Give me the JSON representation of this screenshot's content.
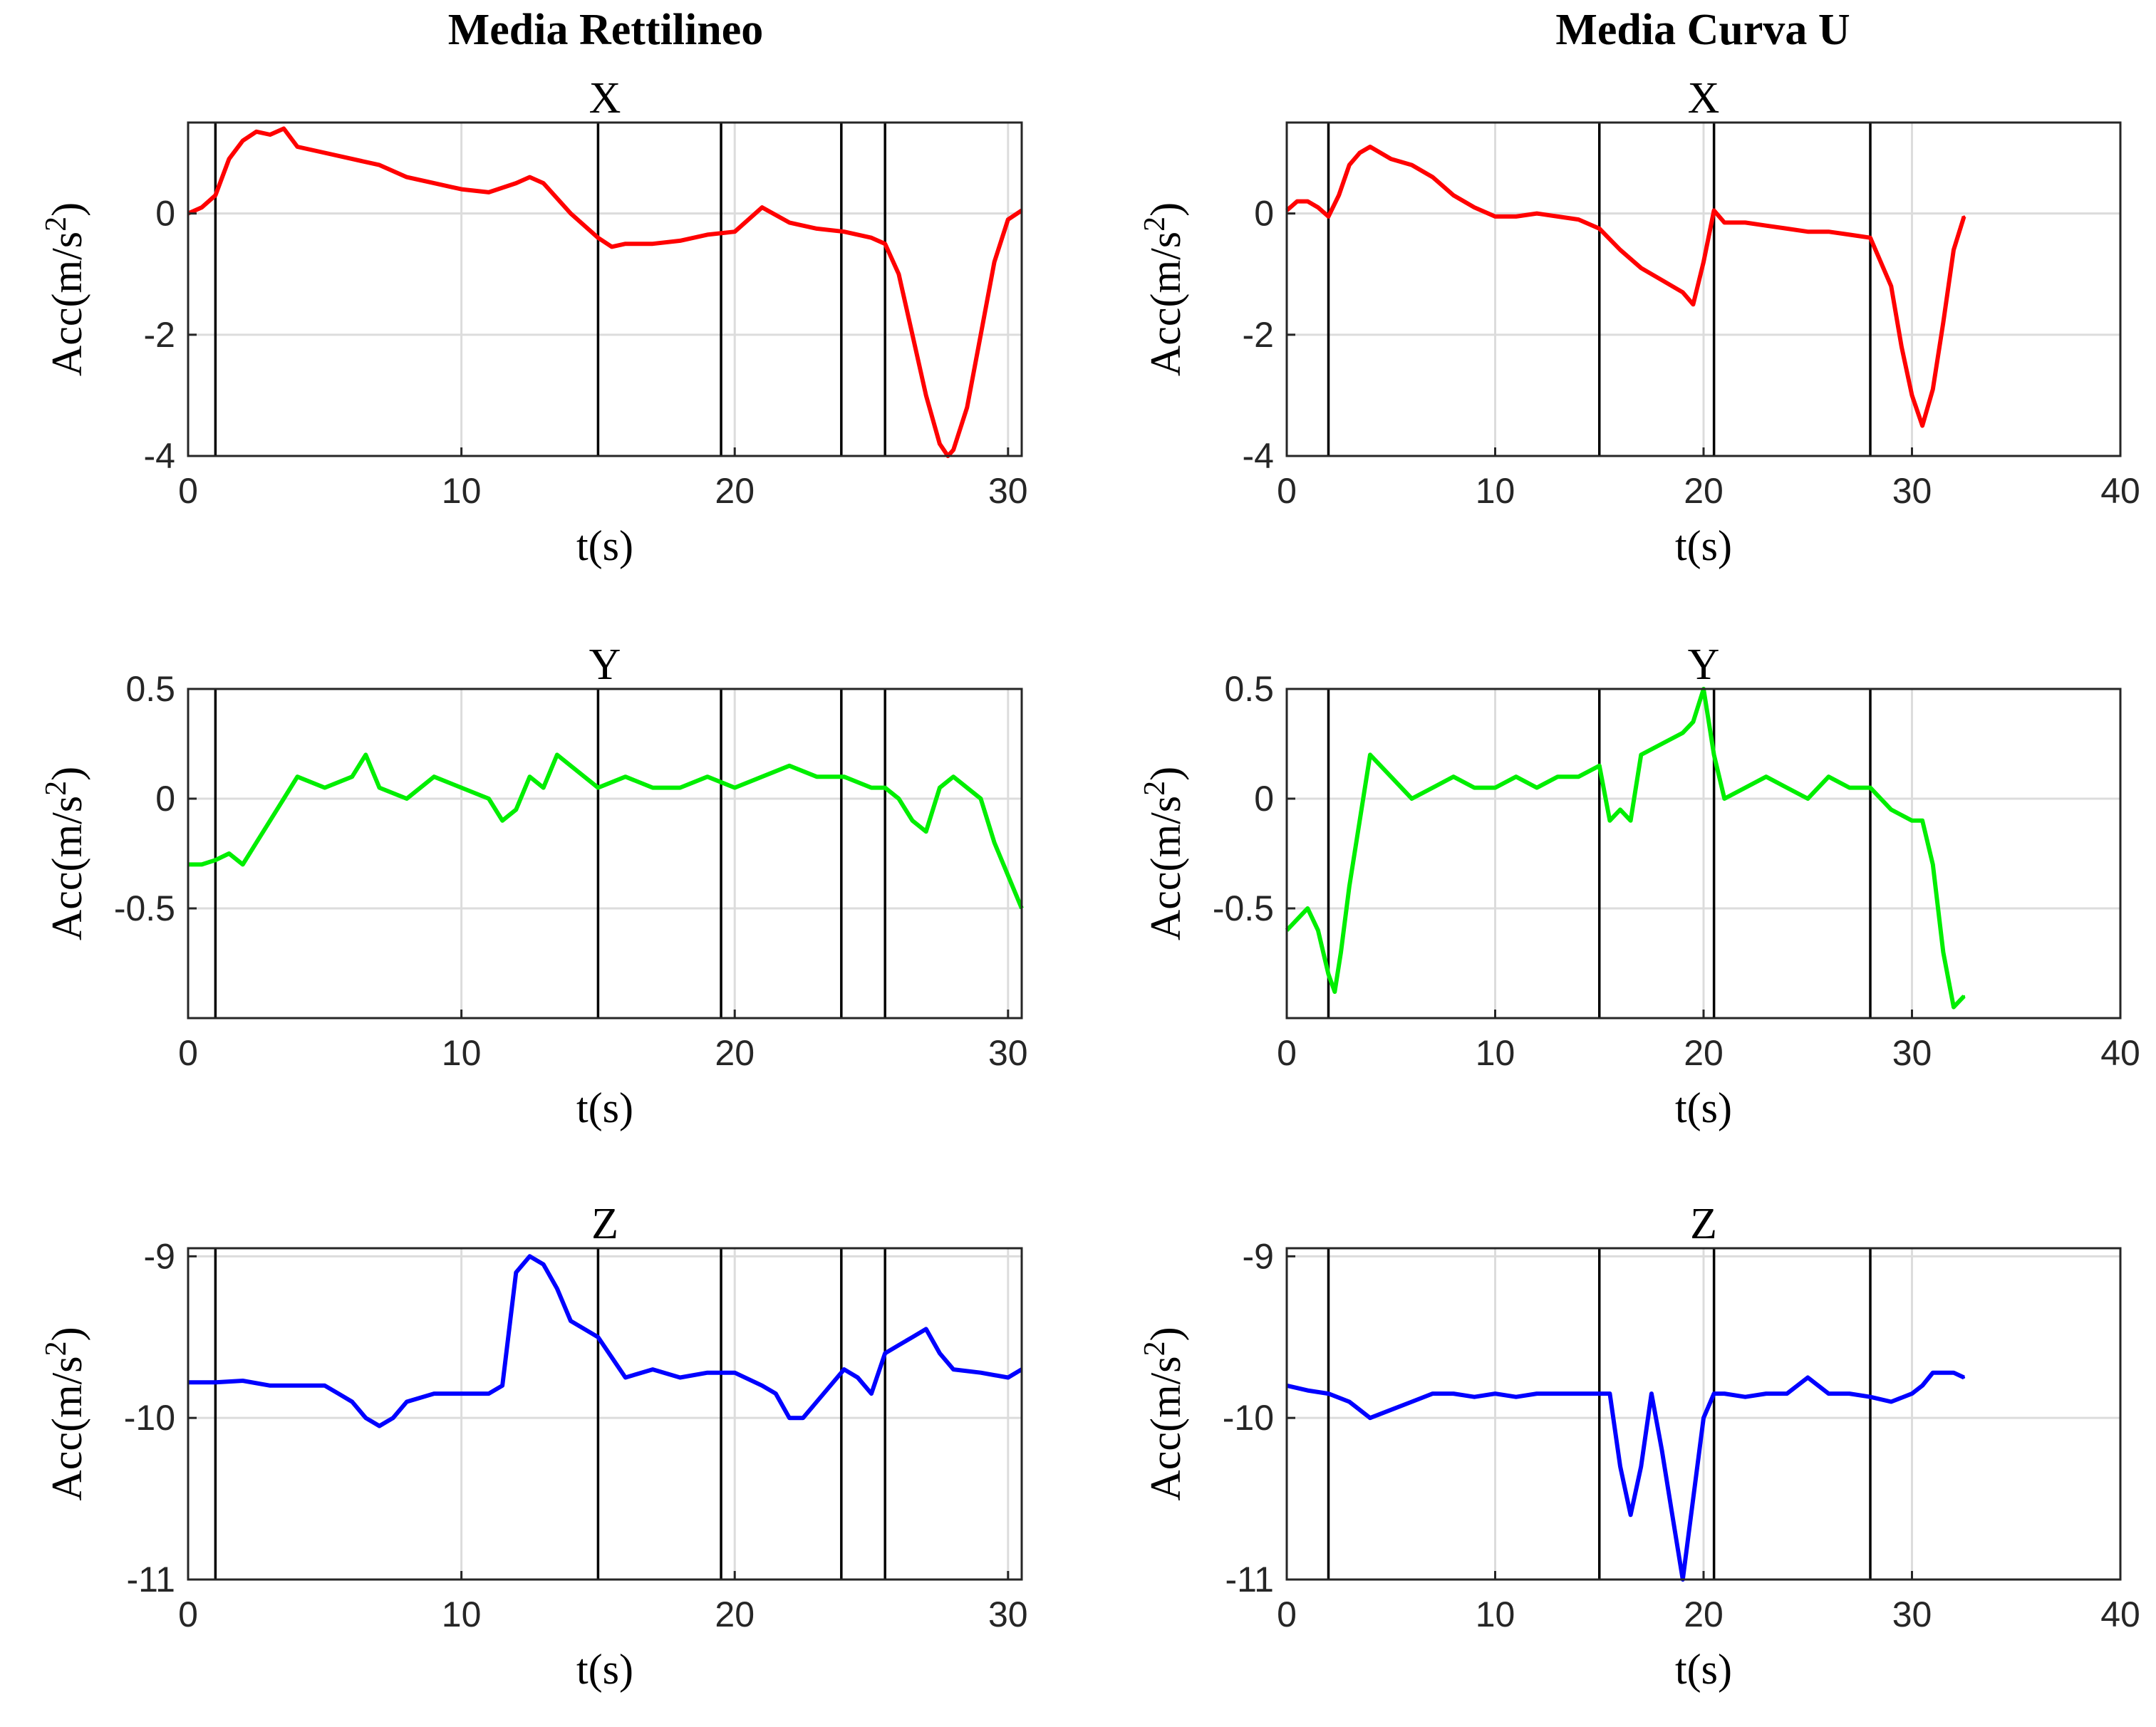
{
  "chart_data": [
    {
      "type": "line",
      "column_title": "Media Rettilineo",
      "title": "X",
      "xlabel": "t(s)",
      "ylabel": "Acc(m/s^2)",
      "xlim": [
        0,
        30.5
      ],
      "ylim": [
        -4,
        1.5
      ],
      "xticks": [
        0,
        10,
        20,
        30
      ],
      "yticks": [
        -4,
        -2,
        0
      ],
      "grid": true,
      "color": "#ff0000",
      "vlines": [
        1,
        15,
        19.5,
        23.9,
        25.5
      ],
      "series": [
        {
          "x": [
            0,
            0.5,
            1,
            1.5,
            2,
            2.5,
            3,
            3.5,
            4,
            5,
            6,
            7,
            8,
            9,
            10,
            11,
            12,
            12.5,
            13,
            14,
            15,
            15.5,
            16,
            17,
            18,
            19,
            20,
            21,
            22,
            23,
            24,
            25,
            25.5,
            26,
            26.5,
            27,
            27.5,
            27.8,
            28,
            28.5,
            29,
            29.5,
            30,
            30.5
          ],
          "y": [
            0,
            0.1,
            0.3,
            0.9,
            1.2,
            1.35,
            1.3,
            1.4,
            1.1,
            1.0,
            0.9,
            0.8,
            0.6,
            0.5,
            0.4,
            0.35,
            0.5,
            0.6,
            0.5,
            0.0,
            -0.4,
            -0.55,
            -0.5,
            -0.5,
            -0.45,
            -0.35,
            -0.3,
            0.1,
            -0.15,
            -0.25,
            -0.3,
            -0.4,
            -0.5,
            -1.0,
            -2.0,
            -3.0,
            -3.8,
            -4.0,
            -3.9,
            -3.2,
            -2.0,
            -0.8,
            -0.1,
            0.05
          ]
        }
      ]
    },
    {
      "type": "line",
      "column_title": "Media Curva U",
      "title": "X",
      "xlabel": "t(s)",
      "ylabel": "Acc(m/s^2)",
      "xlim": [
        0,
        40
      ],
      "ylim": [
        -4,
        1.5
      ],
      "xticks": [
        0,
        10,
        20,
        30,
        40
      ],
      "yticks": [
        -4,
        -2,
        0
      ],
      "grid": true,
      "color": "#ff0000",
      "vlines": [
        2,
        15,
        20.5,
        28
      ],
      "series": [
        {
          "x": [
            0,
            0.5,
            1,
            1.5,
            2,
            2.5,
            3,
            3.5,
            4,
            5,
            6,
            7,
            8,
            9,
            10,
            11,
            12,
            13,
            14,
            15,
            16,
            17,
            18,
            19,
            19.5,
            20,
            20.5,
            21,
            22,
            23,
            24,
            25,
            26,
            27,
            28,
            29,
            29.5,
            30,
            30.5,
            31,
            31.5,
            32,
            32.5
          ],
          "y": [
            0.05,
            0.2,
            0.2,
            0.1,
            -0.05,
            0.3,
            0.8,
            1.0,
            1.1,
            0.9,
            0.8,
            0.6,
            0.3,
            0.1,
            -0.05,
            -0.05,
            0.0,
            -0.05,
            -0.1,
            -0.25,
            -0.6,
            -0.9,
            -1.1,
            -1.3,
            -1.5,
            -0.8,
            0.05,
            -0.15,
            -0.15,
            -0.2,
            -0.25,
            -0.3,
            -0.3,
            -0.35,
            -0.4,
            -1.2,
            -2.2,
            -3.0,
            -3.5,
            -2.9,
            -1.8,
            -0.6,
            -0.05
          ]
        }
      ]
    },
    {
      "type": "line",
      "title": "Y",
      "xlabel": "t(s)",
      "ylabel": "Acc(m/s^2)",
      "xlim": [
        0,
        30.5
      ],
      "ylim": [
        -1,
        0.5
      ],
      "xticks": [
        0,
        10,
        20,
        30
      ],
      "yticks": [
        -0.5,
        0,
        0.5
      ],
      "grid": true,
      "color": "#00ee00",
      "vlines": [
        1,
        15,
        19.5,
        23.9,
        25.5
      ],
      "series": [
        {
          "x": [
            0,
            0.5,
            1,
            1.5,
            2,
            2.5,
            3,
            3.5,
            4,
            5,
            6,
            6.5,
            7,
            8,
            9,
            10,
            11,
            11.5,
            12,
            12.5,
            13,
            13.5,
            14,
            15,
            16,
            17,
            18,
            19,
            20,
            21,
            22,
            23,
            24,
            25,
            25.5,
            26,
            26.5,
            27,
            27.5,
            28,
            28.5,
            29,
            29.5,
            30,
            30.5
          ],
          "y": [
            -0.3,
            -0.3,
            -0.28,
            -0.25,
            -0.3,
            -0.2,
            -0.1,
            0.0,
            0.1,
            0.05,
            0.1,
            0.2,
            0.05,
            0.0,
            0.1,
            0.05,
            0.0,
            -0.1,
            -0.05,
            0.1,
            0.05,
            0.2,
            0.15,
            0.05,
            0.1,
            0.05,
            0.05,
            0.1,
            0.05,
            0.1,
            0.15,
            0.1,
            0.1,
            0.05,
            0.05,
            0.0,
            -0.1,
            -0.15,
            0.05,
            0.1,
            0.05,
            0.0,
            -0.2,
            -0.35,
            -0.5
          ]
        }
      ]
    },
    {
      "type": "line",
      "title": "Y",
      "xlabel": "t(s)",
      "ylabel": "Acc(m/s^2)",
      "xlim": [
        0,
        40
      ],
      "ylim": [
        -1,
        0.5
      ],
      "xticks": [
        0,
        10,
        20,
        30,
        40
      ],
      "yticks": [
        -0.5,
        0,
        0.5
      ],
      "grid": true,
      "color": "#00ee00",
      "vlines": [
        2,
        15,
        20.5,
        28
      ],
      "series": [
        {
          "x": [
            0,
            0.5,
            1,
            1.5,
            2,
            2.3,
            2.6,
            3,
            3.5,
            4,
            5,
            6,
            7,
            8,
            9,
            10,
            11,
            12,
            13,
            14,
            15,
            15.5,
            16,
            16.5,
            17,
            18,
            19,
            19.5,
            20,
            20.5,
            21,
            22,
            23,
            24,
            25,
            26,
            27,
            28,
            29,
            30,
            30.5,
            31,
            31.5,
            32,
            32.5
          ],
          "y": [
            -0.6,
            -0.55,
            -0.5,
            -0.6,
            -0.8,
            -0.88,
            -0.7,
            -0.4,
            -0.1,
            0.2,
            0.1,
            0.0,
            0.05,
            0.1,
            0.05,
            0.05,
            0.1,
            0.05,
            0.1,
            0.1,
            0.15,
            -0.1,
            -0.05,
            -0.1,
            0.2,
            0.25,
            0.3,
            0.35,
            0.5,
            0.2,
            0.0,
            0.05,
            0.1,
            0.05,
            0.0,
            0.1,
            0.05,
            0.05,
            -0.05,
            -0.1,
            -0.1,
            -0.3,
            -0.7,
            -0.95,
            -0.9
          ]
        }
      ]
    },
    {
      "type": "line",
      "title": "Z",
      "xlabel": "t(s)",
      "ylabel": "Acc(m/s^2)",
      "xlim": [
        0,
        30.5
      ],
      "ylim": [
        -11,
        -8.95
      ],
      "xticks": [
        0,
        10,
        20,
        30
      ],
      "yticks": [
        -11,
        -10,
        -9
      ],
      "grid": true,
      "color": "#0000ff",
      "vlines": [
        1,
        15,
        19.5,
        23.9,
        25.5
      ],
      "series": [
        {
          "x": [
            0,
            1,
            2,
            3,
            4,
            5,
            5.5,
            6,
            6.5,
            7,
            7.5,
            8,
            9,
            10,
            11,
            11.5,
            12,
            12.5,
            13,
            13.5,
            14,
            14.5,
            15,
            16,
            17,
            18,
            19,
            20,
            21,
            21.5,
            22,
            22.5,
            23,
            24,
            24.5,
            25,
            25.5,
            26,
            26.5,
            27,
            27.5,
            28,
            29,
            30,
            30.5
          ],
          "y": [
            -9.78,
            -9.78,
            -9.77,
            -9.8,
            -9.8,
            -9.8,
            -9.85,
            -9.9,
            -10.0,
            -10.05,
            -10.0,
            -9.9,
            -9.85,
            -9.85,
            -9.85,
            -9.8,
            -9.1,
            -9.0,
            -9.05,
            -9.2,
            -9.4,
            -9.45,
            -9.5,
            -9.75,
            -9.7,
            -9.75,
            -9.72,
            -9.72,
            -9.8,
            -9.85,
            -10.0,
            -10.0,
            -9.9,
            -9.7,
            -9.75,
            -9.85,
            -9.6,
            -9.55,
            -9.5,
            -9.45,
            -9.6,
            -9.7,
            -9.72,
            -9.75,
            -9.7
          ]
        }
      ]
    },
    {
      "type": "line",
      "title": "Z",
      "xlabel": "t(s)",
      "ylabel": "Acc(m/s^2)",
      "xlim": [
        0,
        40
      ],
      "ylim": [
        -11,
        -8.95
      ],
      "xticks": [
        0,
        10,
        20,
        30,
        40
      ],
      "yticks": [
        -11,
        -10,
        -9
      ],
      "grid": true,
      "color": "#0000ff",
      "vlines": [
        2,
        15,
        20.5,
        28
      ],
      "series": [
        {
          "x": [
            0,
            1,
            2,
            3,
            4,
            5,
            6,
            7,
            8,
            9,
            10,
            11,
            12,
            13,
            14,
            15,
            15.5,
            16,
            16.5,
            17,
            17.5,
            18,
            18.5,
            19,
            19.5,
            20,
            20.5,
            21,
            22,
            23,
            24,
            25,
            26,
            27,
            28,
            29,
            30,
            30.5,
            31,
            32,
            32.5
          ],
          "y": [
            -9.8,
            -9.83,
            -9.85,
            -9.9,
            -10.0,
            -9.95,
            -9.9,
            -9.85,
            -9.85,
            -9.87,
            -9.85,
            -9.87,
            -9.85,
            -9.85,
            -9.85,
            -9.85,
            -9.85,
            -10.3,
            -10.6,
            -10.3,
            -9.85,
            -10.2,
            -10.6,
            -11.0,
            -10.5,
            -10.0,
            -9.85,
            -9.85,
            -9.87,
            -9.85,
            -9.85,
            -9.75,
            -9.85,
            -9.85,
            -9.87,
            -9.9,
            -9.85,
            -9.8,
            -9.72,
            -9.72,
            -9.75
          ]
        }
      ]
    }
  ]
}
